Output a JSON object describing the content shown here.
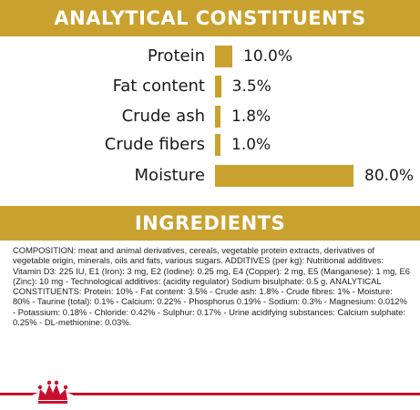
{
  "analytical": {
    "title": "ANALYTICAL CONSTITUENTS",
    "bar_color": "#c9a12e",
    "items": [
      {
        "label": "Protein",
        "value_text": "10.0%",
        "percent": 10.0
      },
      {
        "label": "Fat content",
        "value_text": "3.5%",
        "percent": 3.5
      },
      {
        "label": "Crude ash",
        "value_text": "1.8%",
        "percent": 1.8
      },
      {
        "label": "Crude fibers",
        "value_text": "1.0%",
        "percent": 1.0
      },
      {
        "label": "Moisture",
        "value_text": "80.0%",
        "percent": 80.0
      }
    ]
  },
  "ingredients": {
    "title": "INGREDIENTS",
    "composition": "COMPOSITION: meat and animal derivatives, cereals, vegetable protein extracts, derivatives of vegetable origin, minerals, oils and fats, various sugars. ADDITIVES (per kg): Nutritional additives: Vitamin D3: 225 IU, E1 (Iron): 3 mg, E2 (Iodine): 0.25 mg, E4 (Copper): 2 mg, E5 (Manganese): 1 mg, E6 (Zinc): 10 mg - Technological additives: (acidity regulator) Sodium bisulphate: 0.5 g. ANALYTICAL CONSTITUENTS: Protein: 10% - Fat content: 3.5% - Crude ash: 1.8% - Crude fibres: 1% - Moisture: 80% - Taurine (total): 0.1% - Calcium: 0.22% - Phosphorus 0.19% - Sodium: 0.3% - Magnesium: 0.012% - Potassium: 0.18% - Chloride: 0.42% - Sulphur: 0.17% - Urine acidifying substances: Calcium sulphate: 0.25% - DL-methionine: 0.03%."
  },
  "footer": {
    "accent_color": "#c8102e",
    "logo_icon": "royal-canin-crown-icon"
  }
}
